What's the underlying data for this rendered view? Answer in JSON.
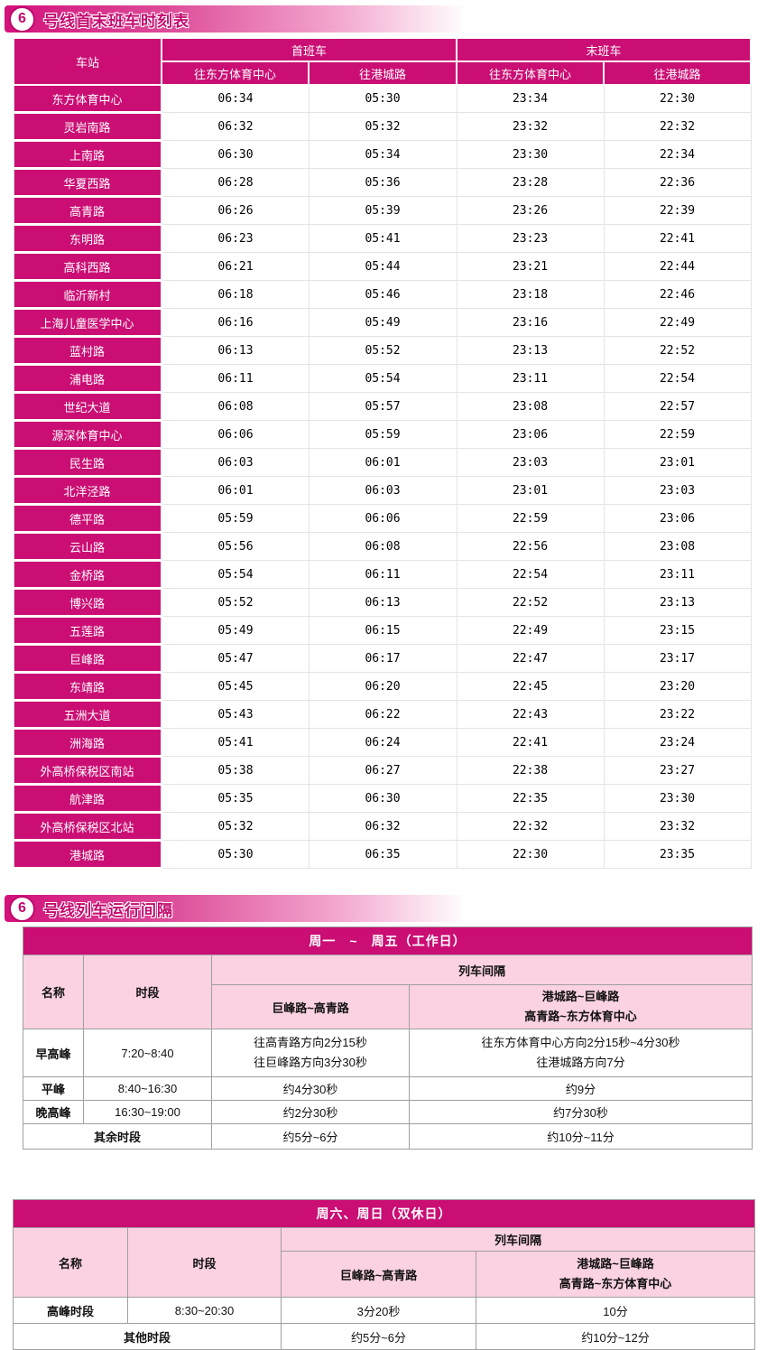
{
  "colors": {
    "line_pink": "#ca0e74",
    "light_pink": "#fbd2e2"
  },
  "section1": {
    "line_number": "6",
    "title": "号线首末班车时刻表",
    "table": {
      "station_header": "车站",
      "first_train": "首班车",
      "last_train": "末班车",
      "to_oriental": "往东方体育中心",
      "to_gangcheng": "往港城路",
      "rows": [
        {
          "station": "东方体育中心",
          "first_a": "06:34",
          "first_b": "05:30",
          "last_a": "23:34",
          "last_b": "22:30"
        },
        {
          "station": "灵岩南路",
          "first_a": "06:32",
          "first_b": "05:32",
          "last_a": "23:32",
          "last_b": "22:32"
        },
        {
          "station": "上南路",
          "first_a": "06:30",
          "first_b": "05:34",
          "last_a": "23:30",
          "last_b": "22:34"
        },
        {
          "station": "华夏西路",
          "first_a": "06:28",
          "first_b": "05:36",
          "last_a": "23:28",
          "last_b": "22:36"
        },
        {
          "station": "高青路",
          "first_a": "06:26",
          "first_b": "05:39",
          "last_a": "23:26",
          "last_b": "22:39"
        },
        {
          "station": "东明路",
          "first_a": "06:23",
          "first_b": "05:41",
          "last_a": "23:23",
          "last_b": "22:41"
        },
        {
          "station": "高科西路",
          "first_a": "06:21",
          "first_b": "05:44",
          "last_a": "23:21",
          "last_b": "22:44"
        },
        {
          "station": "临沂新村",
          "first_a": "06:18",
          "first_b": "05:46",
          "last_a": "23:18",
          "last_b": "22:46"
        },
        {
          "station": "上海儿童医学中心",
          "first_a": "06:16",
          "first_b": "05:49",
          "last_a": "23:16",
          "last_b": "22:49"
        },
        {
          "station": "蓝村路",
          "first_a": "06:13",
          "first_b": "05:52",
          "last_a": "23:13",
          "last_b": "22:52"
        },
        {
          "station": "浦电路",
          "first_a": "06:11",
          "first_b": "05:54",
          "last_a": "23:11",
          "last_b": "22:54"
        },
        {
          "station": "世纪大道",
          "first_a": "06:08",
          "first_b": "05:57",
          "last_a": "23:08",
          "last_b": "22:57"
        },
        {
          "station": "源深体育中心",
          "first_a": "06:06",
          "first_b": "05:59",
          "last_a": "23:06",
          "last_b": "22:59"
        },
        {
          "station": "民生路",
          "first_a": "06:03",
          "first_b": "06:01",
          "last_a": "23:03",
          "last_b": "23:01"
        },
        {
          "station": "北洋泾路",
          "first_a": "06:01",
          "first_b": "06:03",
          "last_a": "23:01",
          "last_b": "23:03"
        },
        {
          "station": "德平路",
          "first_a": "05:59",
          "first_b": "06:06",
          "last_a": "22:59",
          "last_b": "23:06"
        },
        {
          "station": "云山路",
          "first_a": "05:56",
          "first_b": "06:08",
          "last_a": "22:56",
          "last_b": "23:08"
        },
        {
          "station": "金桥路",
          "first_a": "05:54",
          "first_b": "06:11",
          "last_a": "22:54",
          "last_b": "23:11"
        },
        {
          "station": "博兴路",
          "first_a": "05:52",
          "first_b": "06:13",
          "last_a": "22:52",
          "last_b": "23:13"
        },
        {
          "station": "五莲路",
          "first_a": "05:49",
          "first_b": "06:15",
          "last_a": "22:49",
          "last_b": "23:15"
        },
        {
          "station": "巨峰路",
          "first_a": "05:47",
          "first_b": "06:17",
          "last_a": "22:47",
          "last_b": "23:17"
        },
        {
          "station": "东靖路",
          "first_a": "05:45",
          "first_b": "06:20",
          "last_a": "22:45",
          "last_b": "23:20"
        },
        {
          "station": "五洲大道",
          "first_a": "05:43",
          "first_b": "06:22",
          "last_a": "22:43",
          "last_b": "23:22"
        },
        {
          "station": "洲海路",
          "first_a": "05:41",
          "first_b": "06:24",
          "last_a": "22:41",
          "last_b": "23:24"
        },
        {
          "station": "外高桥保税区南站",
          "first_a": "05:38",
          "first_b": "06:27",
          "last_a": "22:38",
          "last_b": "23:27"
        },
        {
          "station": "航津路",
          "first_a": "05:35",
          "first_b": "06:30",
          "last_a": "22:35",
          "last_b": "23:30"
        },
        {
          "station": "外高桥保税区北站",
          "first_a": "05:32",
          "first_b": "06:32",
          "last_a": "22:32",
          "last_b": "23:32"
        },
        {
          "station": "港城路",
          "first_a": "05:30",
          "first_b": "06:35",
          "last_a": "22:30",
          "last_b": "23:35"
        }
      ]
    }
  },
  "section2": {
    "line_number": "6",
    "title": "号线列车运行间隔",
    "weekday": {
      "caption": "周一　~　周五（工作日）",
      "name_header": "名称",
      "period_header": "时段",
      "interval_header": "列车间隔",
      "route_a": "巨峰路~高青路",
      "route_b1": "港城路~巨峰路",
      "route_b2": "高青路~东方体育中心",
      "rows": {
        "morning": {
          "name": "早高峰",
          "period": "7:20~8:40",
          "a1": "往高青路方向2分15秒",
          "a2": "往巨峰路方向3分30秒",
          "b1": "往东方体育中心方向2分15秒~4分30秒",
          "b2": "往港城路方向7分"
        },
        "flat": {
          "name": "平峰",
          "period": "8:40~16:30",
          "a": "约4分30秒",
          "b": "约9分"
        },
        "evening": {
          "name": "晚高峰",
          "period": "16:30~19:00",
          "a": "约2分30秒",
          "b": "约7分30秒"
        },
        "other": {
          "name": "其余时段",
          "a": "约5分~6分",
          "b": "约10分~11分"
        }
      }
    },
    "weekend": {
      "caption": "周六、周日（双休日）",
      "name_header": "名称",
      "period_header": "时段",
      "interval_header": "列车间隔",
      "route_a": "巨峰路~高青路",
      "route_b1": "港城路~巨峰路",
      "route_b2": "高青路~东方体育中心",
      "rows": {
        "peak": {
          "name": "高峰时段",
          "period": "8:30~20:30",
          "a": "3分20秒",
          "b": "10分"
        },
        "other": {
          "name": "其他时段",
          "a": "约5分~6分",
          "b": "约10分~12分"
        }
      }
    }
  }
}
